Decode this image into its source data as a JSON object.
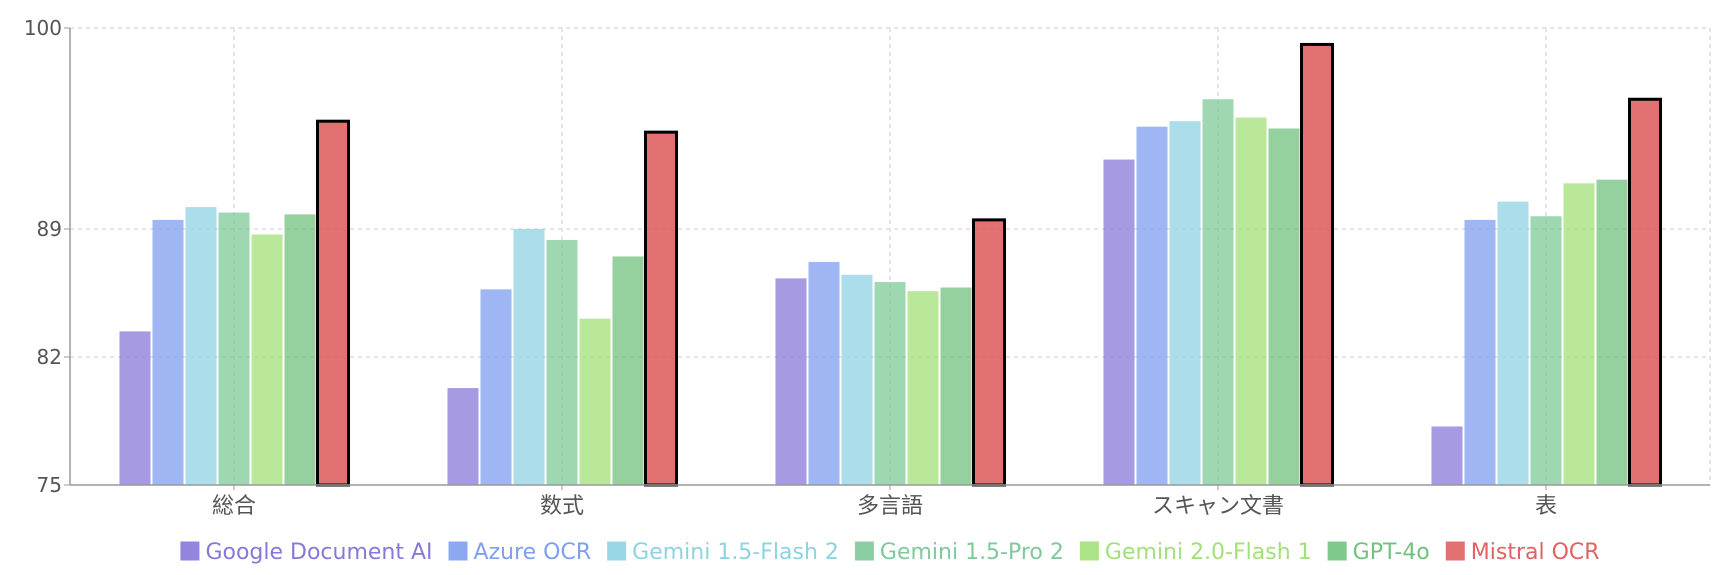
{
  "chart_data": {
    "type": "bar",
    "categories": [
      "総合",
      "数式",
      "多言語",
      "スキャン文書",
      "表"
    ],
    "ylim": [
      75,
      100
    ],
    "yticks": [
      75,
      82,
      89,
      100
    ],
    "grid": true,
    "legend_position": "bottom",
    "series": [
      {
        "name": "Google Document AI",
        "color": "#8878d8",
        "values": [
          83.4,
          80.3,
          86.3,
          92.8,
          78.2
        ]
      },
      {
        "name": "Azure OCR",
        "color": "#7e9ff0",
        "values": [
          89.5,
          85.7,
          87.2,
          94.6,
          89.5
        ]
      },
      {
        "name": "Gemini 1.5-Flash 2",
        "color": "#8fd3e3",
        "values": [
          90.2,
          89.0,
          86.5,
          94.9,
          90.5
        ]
      },
      {
        "name": "Gemini 1.5-Pro 2",
        "color": "#7fc99a",
        "values": [
          89.9,
          88.4,
          86.1,
          96.1,
          89.7
        ]
      },
      {
        "name": "Gemini 2.0-Flash 1",
        "color": "#a3e07a",
        "values": [
          88.7,
          84.1,
          85.6,
          95.1,
          91.5
        ]
      },
      {
        "name": "GPT-4o",
        "color": "#72c27f",
        "values": [
          89.8,
          87.5,
          85.8,
          94.5,
          91.7
        ]
      },
      {
        "name": "Mistral OCR",
        "color": "#e06262",
        "values": [
          94.9,
          94.3,
          89.5,
          99.1,
          96.1
        ]
      }
    ]
  }
}
